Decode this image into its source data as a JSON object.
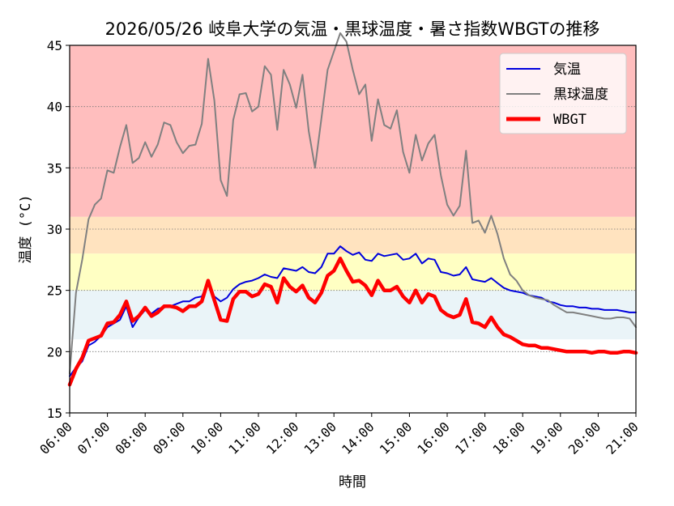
{
  "chart_data": {
    "type": "line",
    "title": "2026/05/26 岐阜大学の気温・黒球温度・暑さ指数WBGTの推移",
    "xlabel": "時間",
    "ylabel": "温度 (°C)",
    "ylim": [
      15,
      45
    ],
    "xlim": [
      "06:00",
      "21:00"
    ],
    "yticks": [
      "15",
      "20",
      "25",
      "30",
      "35",
      "40",
      "45"
    ],
    "xticks": [
      "06:00",
      "07:00",
      "08:00",
      "09:00",
      "10:00",
      "11:00",
      "12:00",
      "13:00",
      "14:00",
      "15:00",
      "16:00",
      "17:00",
      "18:00",
      "19:00",
      "20:00",
      "21:00"
    ],
    "grid": "horizontal dotted",
    "legend_position": "top-right",
    "background_bands": [
      {
        "from": 31,
        "to": 45,
        "color": "#ffbebe"
      },
      {
        "from": 28,
        "to": 31,
        "color": "#ffe3bf"
      },
      {
        "from": 25,
        "to": 28,
        "color": "#ffffc3"
      },
      {
        "from": 21,
        "to": 25,
        "color": "#eaf4f8"
      }
    ],
    "x": [
      "06:00",
      "06:10",
      "06:20",
      "06:30",
      "06:40",
      "06:50",
      "07:00",
      "07:10",
      "07:20",
      "07:30",
      "07:40",
      "07:50",
      "08:00",
      "08:10",
      "08:20",
      "08:30",
      "08:40",
      "08:50",
      "09:00",
      "09:10",
      "09:20",
      "09:30",
      "09:40",
      "09:50",
      "10:00",
      "10:10",
      "10:20",
      "10:30",
      "10:40",
      "10:50",
      "11:00",
      "11:10",
      "11:20",
      "11:30",
      "11:40",
      "11:50",
      "12:00",
      "12:10",
      "12:20",
      "12:30",
      "12:40",
      "12:50",
      "13:00",
      "13:10",
      "13:20",
      "13:30",
      "13:40",
      "13:50",
      "14:00",
      "14:10",
      "14:20",
      "14:30",
      "14:40",
      "14:50",
      "15:00",
      "15:10",
      "15:20",
      "15:30",
      "15:40",
      "15:50",
      "16:00",
      "16:10",
      "16:20",
      "16:30",
      "16:40",
      "16:50",
      "17:00",
      "17:10",
      "17:20",
      "17:30",
      "17:40",
      "17:50",
      "18:00",
      "18:10",
      "18:20",
      "18:30",
      "18:40",
      "18:50",
      "19:00",
      "19:10",
      "19:20",
      "19:30",
      "19:40",
      "19:50",
      "20:00",
      "20:10",
      "20:20",
      "20:30",
      "20:40",
      "20:50",
      "21:00"
    ],
    "series": [
      {
        "name": "気温",
        "color": "#0000dd",
        "values": [
          18.0,
          18.7,
          19.2,
          20.5,
          20.8,
          21.3,
          22.0,
          22.3,
          22.6,
          23.7,
          22.0,
          22.8,
          23.4,
          23.1,
          23.5,
          23.6,
          23.7,
          23.9,
          24.1,
          24.1,
          24.4,
          24.5,
          25.6,
          24.5,
          24.1,
          24.4,
          25.1,
          25.5,
          25.7,
          25.8,
          26.0,
          26.3,
          26.1,
          26.0,
          26.8,
          26.7,
          26.6,
          26.9,
          26.5,
          26.4,
          26.9,
          28.0,
          28.0,
          28.6,
          28.2,
          27.9,
          28.1,
          27.5,
          27.4,
          28.0,
          27.8,
          27.9,
          28.0,
          27.5,
          27.6,
          28.0,
          27.2,
          27.6,
          27.5,
          26.5,
          26.4,
          26.2,
          26.3,
          26.9,
          25.9,
          25.8,
          25.7,
          26.0,
          25.6,
          25.2,
          25.0,
          24.9,
          24.8,
          24.6,
          24.5,
          24.4,
          24.1,
          24.0,
          23.8,
          23.7,
          23.7,
          23.6,
          23.6,
          23.5,
          23.5,
          23.4,
          23.4,
          23.4,
          23.3,
          23.2,
          23.2
        ]
      },
      {
        "name": "黒球温度",
        "color": "#808080",
        "values": [
          18.2,
          24.8,
          27.5,
          30.8,
          32.0,
          32.5,
          34.8,
          34.6,
          36.7,
          38.5,
          35.4,
          35.8,
          37.1,
          35.9,
          36.9,
          38.7,
          38.5,
          37.1,
          36.2,
          36.8,
          36.9,
          38.6,
          43.9,
          40.5,
          34.0,
          32.7,
          38.9,
          41.0,
          41.1,
          39.6,
          40.0,
          43.3,
          42.6,
          38.1,
          43.0,
          41.8,
          39.9,
          42.6,
          38.0,
          35.0,
          39.0,
          43.0,
          44.5,
          46.0,
          45.3,
          43.0,
          41.0,
          41.8,
          37.2,
          40.6,
          38.5,
          38.2,
          39.7,
          36.3,
          34.6,
          37.7,
          35.6,
          37.0,
          37.7,
          34.4,
          32.0,
          31.1,
          31.9,
          36.4,
          30.5,
          30.7,
          29.7,
          31.1,
          29.6,
          27.6,
          26.3,
          25.8,
          25.0,
          24.6,
          24.4,
          24.3,
          24.2,
          23.8,
          23.5,
          23.2,
          23.2,
          23.1,
          23.0,
          22.9,
          22.8,
          22.7,
          22.7,
          22.8,
          22.8,
          22.7,
          22.0
        ]
      },
      {
        "name": "WBGT",
        "color": "#ff0000",
        "values": [
          17.3,
          18.6,
          19.5,
          20.9,
          21.1,
          21.3,
          22.3,
          22.4,
          23.0,
          24.1,
          22.5,
          22.9,
          23.6,
          22.9,
          23.2,
          23.7,
          23.7,
          23.6,
          23.3,
          23.7,
          23.7,
          24.1,
          25.8,
          24.2,
          22.6,
          22.5,
          24.3,
          24.9,
          24.9,
          24.5,
          24.7,
          25.5,
          25.3,
          24.0,
          26.0,
          25.3,
          24.9,
          25.4,
          24.4,
          24.0,
          24.8,
          26.2,
          26.6,
          27.6,
          26.6,
          25.7,
          25.8,
          25.4,
          24.6,
          25.8,
          25.0,
          25.0,
          25.3,
          24.5,
          24.0,
          25.0,
          24.0,
          24.7,
          24.5,
          23.4,
          23.0,
          22.8,
          23.0,
          24.3,
          22.4,
          22.3,
          22.0,
          22.8,
          22.0,
          21.4,
          21.2,
          20.9,
          20.6,
          20.5,
          20.5,
          20.3,
          20.3,
          20.2,
          20.1,
          20.0,
          20.0,
          20.0,
          20.0,
          19.9,
          20.0,
          20.0,
          19.9,
          19.9,
          20.0,
          20.0,
          19.9
        ]
      }
    ]
  }
}
